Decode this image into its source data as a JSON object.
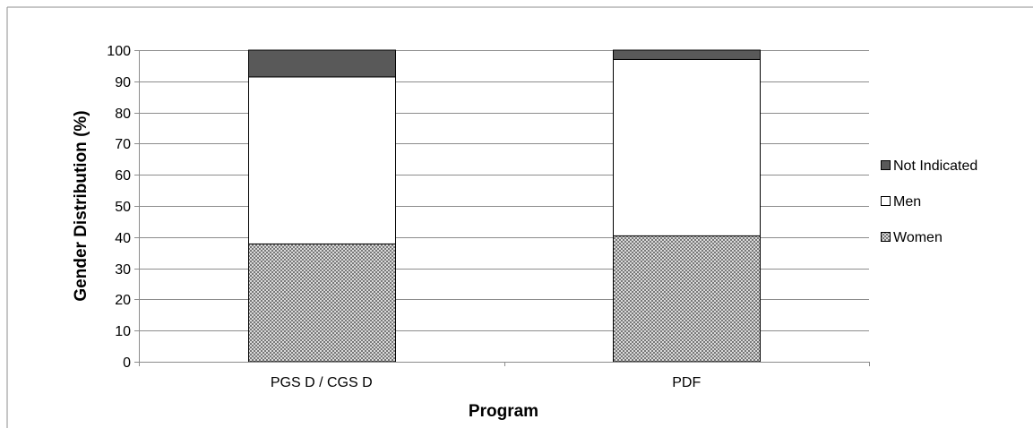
{
  "chart_data": {
    "type": "bar",
    "stacked": true,
    "categories": [
      "PGS D / CGS D",
      "PDF"
    ],
    "series": [
      {
        "name": "Women",
        "values": [
          37.8,
          40.4
        ],
        "fill": "crosshatch",
        "color": "#b0b0b0"
      },
      {
        "name": "Men",
        "values": [
          53.6,
          56.6
        ],
        "fill": "solid",
        "color": "#ffffff"
      },
      {
        "name": "Not Indicated",
        "values": [
          8.6,
          3.0
        ],
        "fill": "solid",
        "color": "#595959"
      }
    ],
    "yticks": [
      "0",
      "10",
      "20",
      "30",
      "40",
      "50",
      "60",
      "70",
      "80",
      "90",
      "100"
    ],
    "xlabel": "Program",
    "ylabel": "Gender Distribution (%)",
    "ylim": [
      0,
      100
    ],
    "grid": true,
    "legend_position": "right",
    "legend_order": [
      "Not Indicated",
      "Men",
      "Women"
    ]
  }
}
